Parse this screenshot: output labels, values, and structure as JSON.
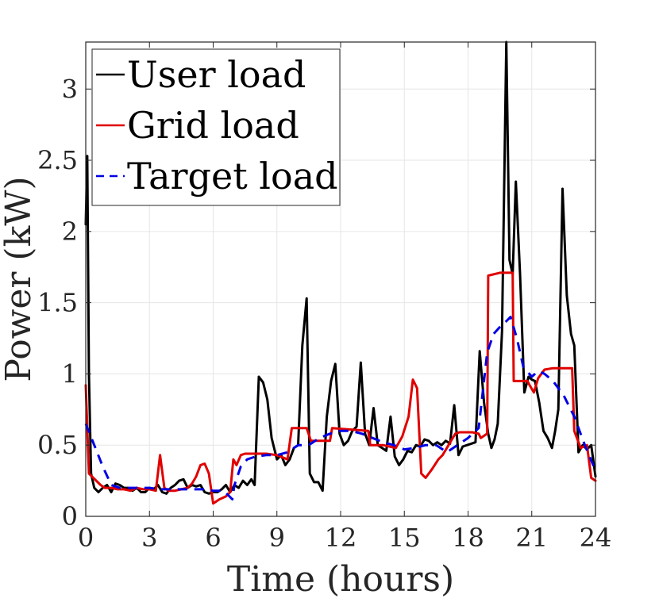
{
  "chart_data": {
    "type": "line",
    "xlabel": "Time (hours)",
    "ylabel": "Power (kW)",
    "xlim": [
      0,
      24
    ],
    "ylim": [
      0,
      3.33
    ],
    "xticks": [
      0,
      3,
      6,
      9,
      12,
      15,
      18,
      21,
      24
    ],
    "xtick_labels": [
      "0",
      "3",
      "6",
      "9",
      "12",
      "15",
      "18",
      "21",
      "24"
    ],
    "yticks": [
      0,
      0.5,
      1,
      1.5,
      2,
      2.5,
      3
    ],
    "ytick_labels": [
      "0",
      "0.5",
      "1",
      "1.5",
      "2",
      "2.5",
      "3"
    ],
    "grid": true,
    "legend_position": "top-left",
    "series": [
      {
        "name": "User load",
        "color": "#000000",
        "dash": "solid",
        "x": [
          0,
          0.07,
          0.15,
          0.25,
          0.4,
          0.6,
          0.8,
          1.0,
          1.2,
          1.4,
          1.6,
          1.8,
          2.0,
          2.2,
          2.4,
          2.6,
          2.8,
          3.0,
          3.2,
          3.4,
          3.6,
          3.8,
          4.0,
          4.2,
          4.4,
          4.6,
          4.8,
          5.0,
          5.2,
          5.4,
          5.6,
          5.8,
          6.0,
          6.2,
          6.4,
          6.6,
          6.8,
          7.0,
          7.2,
          7.4,
          7.6,
          7.8,
          7.95,
          8.15,
          8.35,
          8.55,
          8.75,
          9.0,
          9.2,
          9.4,
          9.6,
          9.8,
          10.0,
          10.2,
          10.4,
          10.55,
          10.75,
          10.95,
          11.15,
          11.35,
          11.55,
          11.75,
          11.95,
          12.15,
          12.35,
          12.55,
          12.75,
          12.95,
          13.15,
          13.35,
          13.55,
          13.75,
          13.95,
          14.15,
          14.35,
          14.55,
          14.75,
          14.95,
          15.15,
          15.35,
          15.55,
          15.75,
          15.95,
          16.15,
          16.35,
          16.55,
          16.75,
          16.95,
          17.15,
          17.35,
          17.55,
          17.75,
          17.95,
          18.15,
          18.35,
          18.55,
          18.75,
          18.95,
          19.1,
          19.25,
          19.4,
          19.6,
          19.8,
          19.95,
          20.1,
          20.25,
          20.45,
          20.65,
          20.85,
          21.0,
          21.15,
          21.35,
          21.55,
          21.75,
          21.95,
          22.1,
          22.25,
          22.45,
          22.65,
          22.85,
          23.0,
          23.2,
          23.4,
          23.6,
          23.8,
          24.0
        ],
        "values": [
          2.05,
          2.53,
          1.0,
          0.3,
          0.2,
          0.17,
          0.2,
          0.22,
          0.17,
          0.23,
          0.22,
          0.2,
          0.2,
          0.18,
          0.2,
          0.17,
          0.17,
          0.2,
          0.19,
          0.22,
          0.17,
          0.16,
          0.2,
          0.22,
          0.25,
          0.26,
          0.2,
          0.22,
          0.21,
          0.22,
          0.17,
          0.16,
          0.17,
          0.17,
          0.19,
          0.22,
          0.17,
          0.22,
          0.2,
          0.25,
          0.22,
          0.26,
          0.22,
          0.98,
          0.94,
          0.82,
          0.55,
          0.4,
          0.43,
          0.36,
          0.4,
          0.48,
          0.5,
          1.2,
          1.53,
          0.3,
          0.24,
          0.24,
          0.18,
          0.7,
          0.95,
          1.07,
          0.58,
          0.5,
          0.53,
          0.6,
          0.63,
          1.08,
          0.58,
          0.5,
          0.76,
          0.5,
          0.48,
          0.46,
          0.7,
          0.42,
          0.36,
          0.4,
          0.46,
          0.45,
          0.5,
          0.49,
          0.54,
          0.53,
          0.5,
          0.52,
          0.5,
          0.53,
          0.51,
          0.78,
          0.43,
          0.49,
          0.5,
          0.51,
          0.52,
          1.16,
          0.8,
          0.58,
          0.48,
          0.54,
          0.65,
          1.3,
          3.33,
          1.8,
          1.7,
          2.35,
          1.7,
          0.87,
          0.98,
          0.96,
          0.95,
          0.8,
          0.6,
          0.55,
          0.48,
          0.6,
          0.75,
          2.3,
          1.55,
          1.28,
          1.2,
          0.45,
          0.5,
          0.47,
          0.5,
          0.28
        ]
      },
      {
        "name": "Grid load",
        "color": "#e00000",
        "dash": "solid",
        "x": [
          0,
          0.15,
          0.7,
          0.9,
          1.2,
          1.5,
          1.8,
          2.1,
          2.4,
          2.7,
          3.0,
          3.3,
          3.5,
          3.7,
          3.9,
          4.2,
          4.5,
          4.8,
          5.0,
          5.2,
          5.4,
          5.6,
          5.8,
          6.0,
          6.3,
          6.6,
          6.8,
          6.95,
          7.1,
          7.3,
          7.5,
          7.7,
          8.5,
          9.0,
          9.5,
          9.7,
          10.4,
          10.6,
          11.5,
          11.6,
          13.3,
          13.4,
          14.0,
          14.6,
          14.9,
          15.2,
          15.4,
          15.6,
          15.8,
          16.0,
          16.3,
          16.6,
          16.8,
          17.0,
          17.2,
          17.4,
          17.6,
          17.8,
          18.2,
          18.5,
          18.6,
          18.9,
          18.95,
          19.5,
          20.1,
          20.15,
          20.8,
          20.9,
          21.1,
          21.3,
          21.6,
          22.0,
          22.4,
          22.9,
          23.0,
          23.3,
          23.6,
          23.8,
          24.0
        ],
        "values": [
          0.92,
          0.3,
          0.22,
          0.2,
          0.2,
          0.19,
          0.19,
          0.18,
          0.2,
          0.19,
          0.19,
          0.18,
          0.43,
          0.2,
          0.18,
          0.18,
          0.19,
          0.2,
          0.23,
          0.28,
          0.36,
          0.37,
          0.3,
          0.09,
          0.12,
          0.14,
          0.17,
          0.4,
          0.36,
          0.43,
          0.44,
          0.44,
          0.44,
          0.43,
          0.4,
          0.62,
          0.62,
          0.53,
          0.53,
          0.62,
          0.6,
          0.5,
          0.5,
          0.48,
          0.56,
          0.7,
          0.96,
          0.9,
          0.3,
          0.27,
          0.33,
          0.4,
          0.43,
          0.48,
          0.53,
          0.58,
          0.59,
          0.59,
          0.59,
          0.58,
          0.55,
          0.58,
          1.69,
          1.71,
          1.71,
          0.95,
          0.95,
          0.92,
          0.87,
          0.97,
          1.03,
          1.04,
          1.04,
          1.04,
          0.6,
          0.48,
          0.5,
          0.27,
          0.25
        ]
      },
      {
        "name": "Target load",
        "color": "#0000e6",
        "dash": "dashed",
        "x": [
          0,
          0.4,
          0.8,
          1.2,
          1.6,
          2.0,
          2.5,
          3.0,
          3.5,
          4.0,
          4.5,
          5.0,
          5.5,
          6.0,
          6.5,
          6.9,
          7.0,
          7.3,
          7.6,
          8.0,
          8.5,
          9.0,
          9.5,
          10.0,
          10.5,
          11.0,
          11.5,
          12.0,
          12.5,
          13.0,
          13.5,
          14.0,
          14.5,
          15.0,
          15.5,
          16.0,
          16.5,
          17.0,
          17.5,
          18.0,
          18.5,
          18.9,
          19.2,
          19.5,
          19.8,
          20.0,
          20.3,
          20.6,
          21.0,
          21.3,
          21.6,
          22.0,
          22.5,
          23.0,
          23.5,
          24.0
        ],
        "values": [
          0.65,
          0.5,
          0.35,
          0.22,
          0.2,
          0.2,
          0.2,
          0.2,
          0.19,
          0.19,
          0.19,
          0.19,
          0.19,
          0.18,
          0.18,
          0.12,
          0.22,
          0.35,
          0.4,
          0.42,
          0.43,
          0.43,
          0.45,
          0.5,
          0.5,
          0.55,
          0.58,
          0.6,
          0.6,
          0.58,
          0.55,
          0.52,
          0.5,
          0.47,
          0.48,
          0.5,
          0.5,
          0.45,
          0.5,
          0.55,
          0.62,
          1.15,
          1.28,
          1.33,
          1.37,
          1.4,
          1.25,
          1.05,
          0.98,
          1.02,
          1.0,
          0.95,
          0.85,
          0.7,
          0.5,
          0.32
        ]
      }
    ]
  }
}
